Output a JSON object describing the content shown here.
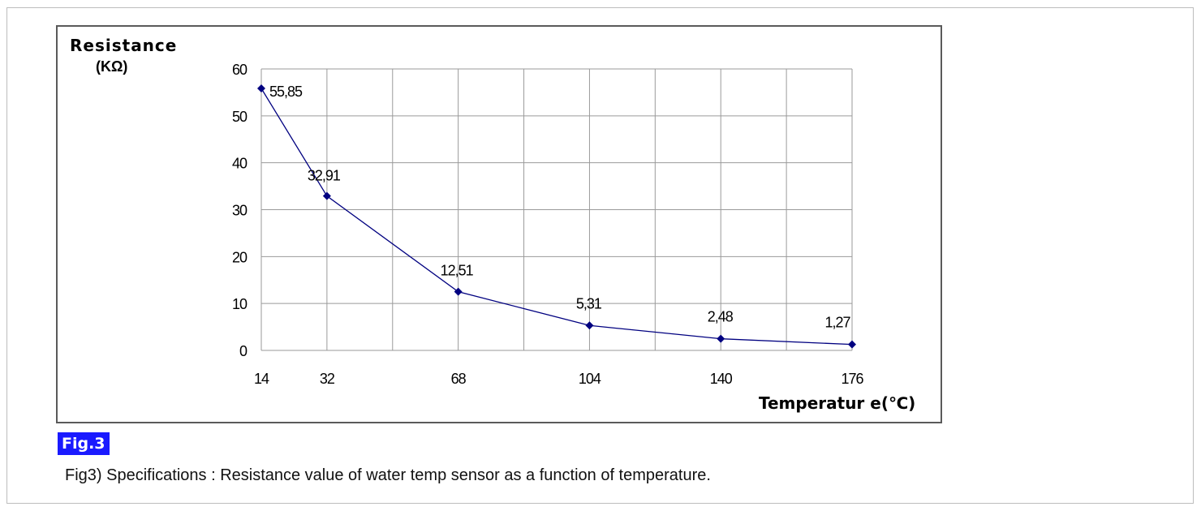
{
  "chart_data": {
    "type": "line",
    "ylabel": "Resistance",
    "yunit": "(KΩ)",
    "xlabel": "Temperatur e(℃)",
    "categories": [
      "14",
      "32",
      "68",
      "104",
      "140",
      "176"
    ],
    "x": [
      14,
      32,
      50,
      68,
      86,
      104,
      122,
      140,
      158,
      176
    ],
    "series": [
      {
        "x": [
          14,
          32,
          68,
          104,
          140,
          176
        ],
        "values": [
          55.85,
          32.91,
          12.51,
          5.31,
          2.48,
          1.27
        ],
        "labels": [
          "55,85",
          "32,91",
          "12,51",
          "5,31",
          "2,48",
          "1,27"
        ],
        "color": "#000080"
      }
    ],
    "yticks": [
      0,
      10,
      20,
      30,
      40,
      50,
      60
    ],
    "ylim": [
      0,
      60
    ],
    "xlim": [
      14,
      176
    ],
    "grid": true
  },
  "figure": {
    "badge": "Fig.3",
    "caption": "Fig3) Specifications : Resistance value of water temp sensor as a function of temperature."
  }
}
